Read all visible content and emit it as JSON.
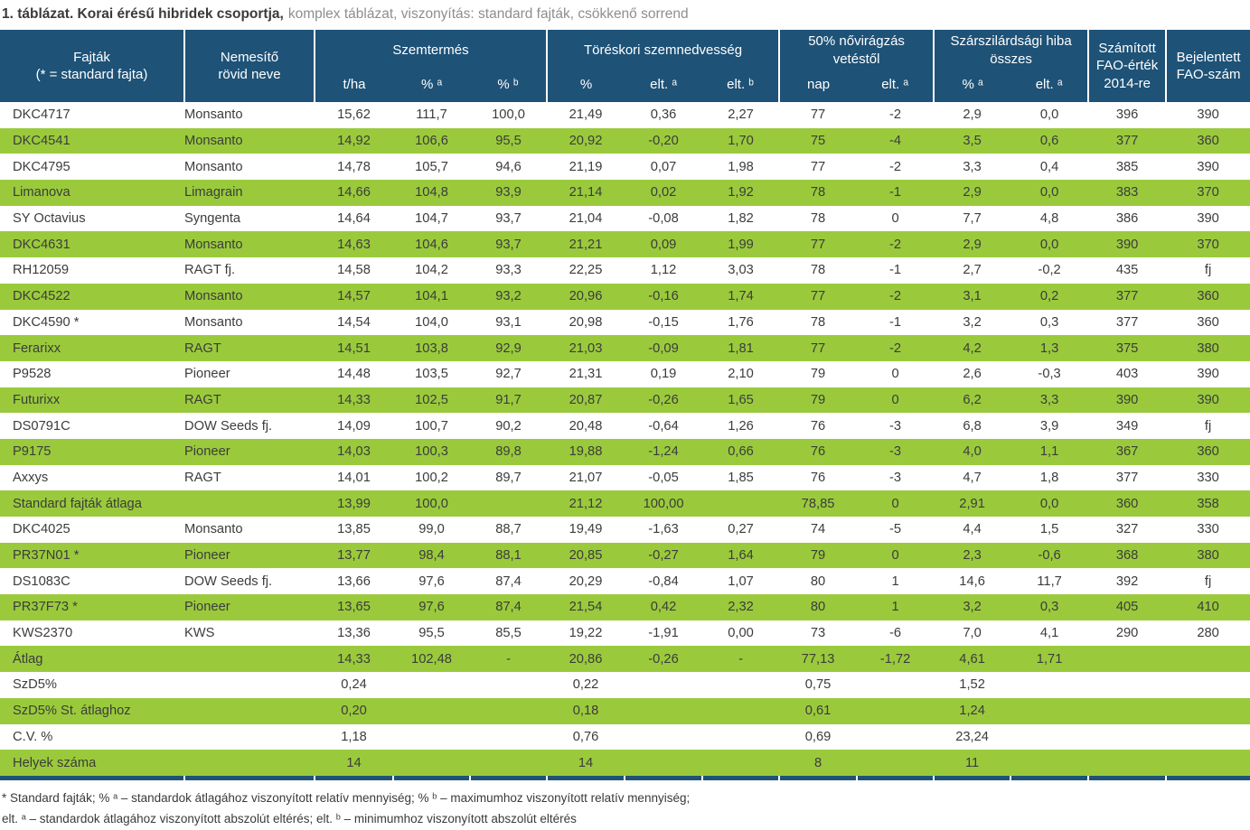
{
  "title": {
    "bold": "1. táblázat. Korai érésű hibridek csoportja,",
    "muted": "komplex táblázat, viszonyítás: standard fajták, csökkenő sorrend"
  },
  "colors": {
    "header_bg": "#1e5277",
    "row_green": "#9aca3c",
    "text": "#3c3c3b",
    "title_muted": "#8e8e8e"
  },
  "table": {
    "groups": [
      {
        "id": "fajtak",
        "label": "Fajták\n(* = standard fajta)"
      },
      {
        "id": "nemesito",
        "label": "Nemesítő\nrövid neve"
      },
      {
        "id": "szemtermes",
        "label": "Szemtermés",
        "subs": [
          {
            "id": "t-ha",
            "label": "t/ha"
          },
          {
            "id": "pct-a",
            "label": "% ᵃ"
          },
          {
            "id": "pct-b",
            "label": "% ᵇ"
          }
        ]
      },
      {
        "id": "toreskori-szemnedvesseg",
        "label": "Töréskori szemnedvesség",
        "subs": [
          {
            "id": "pct",
            "label": "%"
          },
          {
            "id": "elt-a",
            "label": "elt. ᵃ"
          },
          {
            "id": "elt-b",
            "label": "elt. ᵇ"
          }
        ]
      },
      {
        "id": "novirragzas",
        "label": "50% nővirágzás\nvetéstől",
        "subs": [
          {
            "id": "nap",
            "label": "nap"
          },
          {
            "id": "elt-a",
            "label": "elt. ᵃ"
          }
        ]
      },
      {
        "id": "szarszilardsagi-hiba",
        "label": "Szárszilárdsági hiba\nösszes",
        "subs": [
          {
            "id": "pct-a",
            "label": "% ᵃ"
          },
          {
            "id": "elt-a",
            "label": "elt. ᵃ"
          }
        ]
      },
      {
        "id": "szamitott-fao",
        "label": "Számított\nFAO-érték\n2014-re"
      },
      {
        "id": "bejelentett-fao",
        "label": "Bejelentett\nFAO-szám"
      }
    ],
    "rows": [
      [
        "DKC4717",
        "Monsanto",
        "15,62",
        "111,7",
        "100,0",
        "21,49",
        "0,36",
        "2,27",
        "77",
        "-2",
        "2,9",
        "0,0",
        "396",
        "390"
      ],
      [
        "DKC4541",
        "Monsanto",
        "14,92",
        "106,6",
        "95,5",
        "20,92",
        "-0,20",
        "1,70",
        "75",
        "-4",
        "3,5",
        "0,6",
        "377",
        "360"
      ],
      [
        "DKC4795",
        "Monsanto",
        "14,78",
        "105,7",
        "94,6",
        "21,19",
        "0,07",
        "1,98",
        "77",
        "-2",
        "3,3",
        "0,4",
        "385",
        "390"
      ],
      [
        "Limanova",
        "Limagrain",
        "14,66",
        "104,8",
        "93,9",
        "21,14",
        "0,02",
        "1,92",
        "78",
        "-1",
        "2,9",
        "0,0",
        "383",
        "370"
      ],
      [
        "SY Octavius",
        "Syngenta",
        "14,64",
        "104,7",
        "93,7",
        "21,04",
        "-0,08",
        "1,82",
        "78",
        "0",
        "7,7",
        "4,8",
        "386",
        "390"
      ],
      [
        "DKC4631",
        "Monsanto",
        "14,63",
        "104,6",
        "93,7",
        "21,21",
        "0,09",
        "1,99",
        "77",
        "-2",
        "2,9",
        "0,0",
        "390",
        "370"
      ],
      [
        "RH12059",
        "RAGT fj.",
        "14,58",
        "104,2",
        "93,3",
        "22,25",
        "1,12",
        "3,03",
        "78",
        "-1",
        "2,7",
        "-0,2",
        "435",
        "fj"
      ],
      [
        "DKC4522",
        "Monsanto",
        "14,57",
        "104,1",
        "93,2",
        "20,96",
        "-0,16",
        "1,74",
        "77",
        "-2",
        "3,1",
        "0,2",
        "377",
        "360"
      ],
      [
        "DKC4590 *",
        "Monsanto",
        "14,54",
        "104,0",
        "93,1",
        "20,98",
        "-0,15",
        "1,76",
        "78",
        "-1",
        "3,2",
        "0,3",
        "377",
        "360"
      ],
      [
        "Ferarixx",
        "RAGT",
        "14,51",
        "103,8",
        "92,9",
        "21,03",
        "-0,09",
        "1,81",
        "77",
        "-2",
        "4,2",
        "1,3",
        "375",
        "380"
      ],
      [
        "P9528",
        "Pioneer",
        "14,48",
        "103,5",
        "92,7",
        "21,31",
        "0,19",
        "2,10",
        "79",
        "0",
        "2,6",
        "-0,3",
        "403",
        "390"
      ],
      [
        "Futurixx",
        "RAGT",
        "14,33",
        "102,5",
        "91,7",
        "20,87",
        "-0,26",
        "1,65",
        "79",
        "0",
        "6,2",
        "3,3",
        "390",
        "390"
      ],
      [
        "DS0791C",
        "DOW Seeds fj.",
        "14,09",
        "100,7",
        "90,2",
        "20,48",
        "-0,64",
        "1,26",
        "76",
        "-3",
        "6,8",
        "3,9",
        "349",
        "fj"
      ],
      [
        "P9175",
        "Pioneer",
        "14,03",
        "100,3",
        "89,8",
        "19,88",
        "-1,24",
        "0,66",
        "76",
        "-3",
        "4,0",
        "1,1",
        "367",
        "360"
      ],
      [
        "Axxys",
        "RAGT",
        "14,01",
        "100,2",
        "89,7",
        "21,07",
        "-0,05",
        "1,85",
        "76",
        "-3",
        "4,7",
        "1,8",
        "377",
        "330"
      ],
      [
        "Standard fajták átlaga",
        "",
        "13,99",
        "100,0",
        "",
        "21,12",
        "100,00",
        "",
        "78,85",
        "0",
        "2,91",
        "0,0",
        "360",
        "358"
      ],
      [
        "DKC4025",
        "Monsanto",
        "13,85",
        "99,0",
        "88,7",
        "19,49",
        "-1,63",
        "0,27",
        "74",
        "-5",
        "4,4",
        "1,5",
        "327",
        "330"
      ],
      [
        "PR37N01 *",
        "Pioneer",
        "13,77",
        "98,4",
        "88,1",
        "20,85",
        "-0,27",
        "1,64",
        "79",
        "0",
        "2,3",
        "-0,6",
        "368",
        "380"
      ],
      [
        "DS1083C",
        "DOW Seeds fj.",
        "13,66",
        "97,6",
        "87,4",
        "20,29",
        "-0,84",
        "1,07",
        "80",
        "1",
        "14,6",
        "11,7",
        "392",
        "fj"
      ],
      [
        "PR37F73 *",
        "Pioneer",
        "13,65",
        "97,6",
        "87,4",
        "21,54",
        "0,42",
        "2,32",
        "80",
        "1",
        "3,2",
        "0,3",
        "405",
        "410"
      ],
      [
        "KWS2370",
        "KWS",
        "13,36",
        "95,5",
        "85,5",
        "19,22",
        "-1,91",
        "0,00",
        "73",
        "-6",
        "7,0",
        "4,1",
        "290",
        "280"
      ],
      [
        "Átlag",
        "",
        "14,33",
        "102,48",
        "-",
        "20,86",
        "-0,26",
        "-",
        "77,13",
        "-1,72",
        "4,61",
        "1,71",
        "",
        ""
      ],
      [
        "SzD5%",
        "",
        "0,24",
        "",
        "",
        "0,22",
        "",
        "",
        "0,75",
        "",
        "1,52",
        "",
        "",
        ""
      ],
      [
        "SzD5% St. átlaghoz",
        "",
        "0,20",
        "",
        "",
        "0,18",
        "",
        "",
        "0,61",
        "",
        "1,24",
        "",
        "",
        ""
      ],
      [
        "C.V. %",
        "",
        "1,18",
        "",
        "",
        "0,76",
        "",
        "",
        "0,69",
        "",
        "23,24",
        "",
        "",
        ""
      ],
      [
        "Helyek száma",
        "",
        "14",
        "",
        "",
        "14",
        "",
        "",
        "8",
        "",
        "11",
        "",
        "",
        ""
      ]
    ]
  },
  "footnotes": {
    "line1": "* Standard fajták; % ᵃ – standardok átlagához viszonyított relatív mennyiség; % ᵇ – maximumhoz viszonyított relatív mennyiség;",
    "line2": "elt. ᵃ – standardok átlagához viszonyított abszolút eltérés; elt. ᵇ – minimumhoz viszonyított abszolút eltérés"
  }
}
